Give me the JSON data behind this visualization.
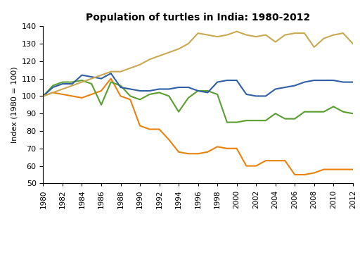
{
  "title": "Population of turtles in India: 1980-2012",
  "ylabel": "Index (1980 = 100)",
  "ylim": [
    50,
    140
  ],
  "yticks": [
    50,
    60,
    70,
    80,
    90,
    100,
    110,
    120,
    130,
    140
  ],
  "years": [
    1980,
    1981,
    1982,
    1983,
    1984,
    1985,
    1986,
    1987,
    1988,
    1989,
    1990,
    1991,
    1992,
    1993,
    1994,
    1995,
    1996,
    1997,
    1998,
    1999,
    2000,
    2001,
    2002,
    2003,
    2004,
    2005,
    2006,
    2007,
    2008,
    2009,
    2010,
    2011,
    2012
  ],
  "leatherback": [
    100,
    102,
    101,
    100,
    99,
    101,
    103,
    110,
    100,
    98,
    83,
    81,
    81,
    75,
    68,
    67,
    67,
    68,
    71,
    70,
    70,
    60,
    60,
    63,
    63,
    63,
    55,
    55,
    56,
    58,
    58,
    58,
    58
  ],
  "green": [
    100,
    106,
    108,
    108,
    109,
    107,
    95,
    108,
    106,
    100,
    98,
    101,
    102,
    100,
    91,
    99,
    103,
    103,
    101,
    85,
    85,
    86,
    86,
    86,
    90,
    87,
    87,
    91,
    91,
    91,
    94,
    91,
    90
  ],
  "all_species": [
    100,
    105,
    107,
    107,
    112,
    111,
    110,
    113,
    105,
    104,
    103,
    103,
    104,
    104,
    105,
    105,
    103,
    102,
    108,
    109,
    109,
    101,
    100,
    100,
    104,
    105,
    106,
    108,
    109,
    109,
    109,
    108,
    108
  ],
  "olive_ridley": [
    100,
    102,
    104,
    106,
    108,
    110,
    112,
    114,
    114,
    116,
    118,
    121,
    123,
    125,
    127,
    130,
    136,
    135,
    134,
    135,
    137,
    135,
    134,
    135,
    131,
    135,
    136,
    136,
    128,
    133,
    135,
    136,
    130
  ],
  "leatherback_color": "#E8820C",
  "green_color": "#5A9E2F",
  "all_species_color": "#2E5FA3",
  "olive_ridley_color": "#C8A850",
  "background_color": "#FFFFFF",
  "xtick_years": [
    1980,
    1982,
    1984,
    1986,
    1988,
    1990,
    1992,
    1994,
    1996,
    1998,
    2000,
    2002,
    2004,
    2006,
    2008,
    2010,
    2012
  ]
}
